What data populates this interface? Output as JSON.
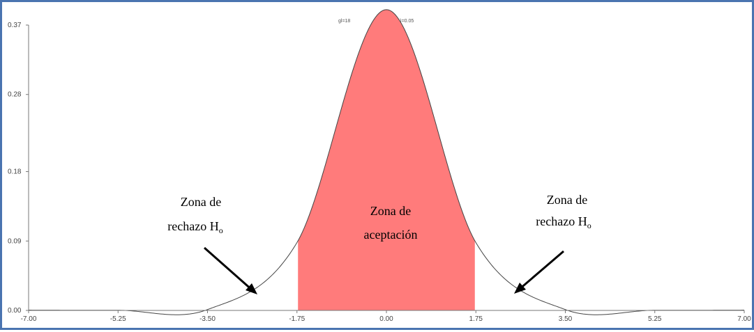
{
  "header": {
    "gl_text": "gl=18",
    "p_text": "p(evento)=0.05"
  },
  "chart_data": {
    "type": "area",
    "distribution": "Student t",
    "df": 18,
    "alpha": 0.05,
    "xlim": [
      -7.0,
      7.0
    ],
    "ylim": [
      0.0,
      0.37
    ],
    "critical_values": [
      -1.73,
      1.73
    ],
    "shaded_region": [
      -1.73,
      1.73
    ],
    "x_ticks": [
      "-7.00",
      "-5.25",
      "-3.50",
      "-1.75",
      "0.00",
      "1.75",
      "3.50",
      "5.25",
      "7.00"
    ],
    "y_ticks": [
      "0.37",
      "0.28",
      "0.18",
      "0.09",
      "0.00"
    ],
    "points": [
      {
        "x": -7.0,
        "y": 0.0004
      },
      {
        "x": -5.25,
        "y": 0.0002
      },
      {
        "x": -3.5,
        "y": 0.0011
      },
      {
        "x": -1.75,
        "y": 0.088
      },
      {
        "x": 0.0,
        "y": 0.39
      },
      {
        "x": 1.75,
        "y": 0.088
      },
      {
        "x": 3.5,
        "y": 0.0011
      },
      {
        "x": 5.25,
        "y": 0.0002
      },
      {
        "x": 7.0,
        "y": 0.0004
      }
    ],
    "fill_color": "#ff7b7b",
    "curve_color": "#444444",
    "grid": false
  },
  "annotations": {
    "left": {
      "line1": "Zona de",
      "line2": "rechazo H",
      "sub": "o"
    },
    "center": {
      "line1": "Zona de",
      "line2": "aceptación"
    },
    "right": {
      "line1": "Zona de",
      "line2": "rechazo H",
      "sub": "o"
    }
  }
}
